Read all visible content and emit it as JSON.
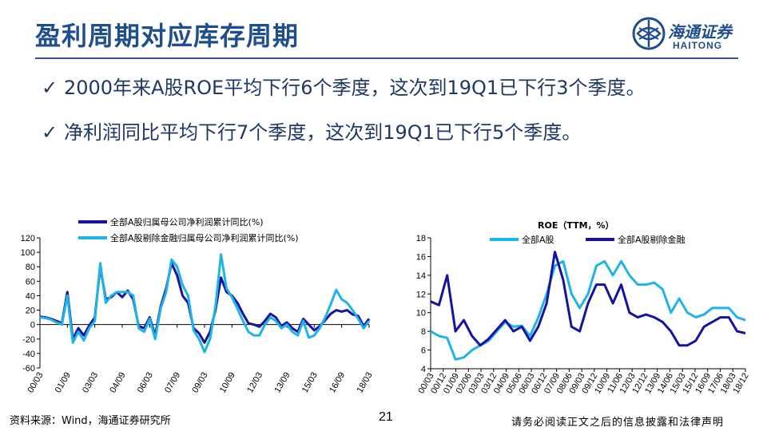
{
  "header": {
    "title": "盈利周期对应库存周期",
    "logo_cn": "海通证券",
    "logo_en": "HAITONG"
  },
  "bullets": [
    {
      "check": "✓",
      "text": "2000年来A股ROE平均下行6个季度，这次到19Q1已下行3个季度。"
    },
    {
      "check": "✓",
      "text": "净利润同比平均下行7个季度，这次到19Q1已下行5个季度。"
    }
  ],
  "colors": {
    "dark": "#1414a0",
    "light": "#1eb4e6",
    "title": "#1f4e8c"
  },
  "chart_data": [
    {
      "type": "line",
      "title": "",
      "xlabel": "",
      "ylabel": "",
      "ylim": [
        -60,
        120
      ],
      "yticks": [
        "120",
        "100",
        "80",
        "60",
        "40",
        "20",
        "0",
        "-20",
        "-40",
        "-60"
      ],
      "xticks": [
        "00/03",
        "01/09",
        "03/03",
        "04/09",
        "06/03",
        "07/09",
        "09/03",
        "10/09",
        "12/03",
        "13/09",
        "15/03",
        "16/09",
        "18/03"
      ],
      "legend_position": "top",
      "series": [
        {
          "name": "全部A股归属母公司净利润累计同比(%)",
          "color": "#1414a0",
          "values": [
            11,
            10,
            8,
            5,
            2,
            45,
            -20,
            -5,
            -15,
            -1,
            10,
            80,
            35,
            38,
            45,
            38,
            47,
            35,
            -2,
            -5,
            10,
            -15,
            25,
            50,
            85,
            68,
            40,
            30,
            -5,
            -12,
            -25,
            -10,
            20,
            65,
            45,
            40,
            30,
            15,
            2,
            0,
            -3,
            5,
            15,
            10,
            -2,
            3,
            -5,
            -10,
            8,
            0,
            -8,
            -2,
            6,
            15,
            20,
            18,
            20,
            14,
            12,
            -2,
            8
          ]
        },
        {
          "name": "全部A股剔除金融归属母公司净利润累计同比(%)",
          "color": "#1eb4e6",
          "values": [
            10,
            9,
            7,
            3,
            0,
            40,
            -25,
            -10,
            -22,
            -5,
            5,
            85,
            30,
            40,
            45,
            45,
            45,
            40,
            -5,
            -10,
            8,
            -20,
            22,
            45,
            90,
            80,
            55,
            40,
            -8,
            -20,
            -38,
            -20,
            25,
            97,
            50,
            38,
            22,
            5,
            -10,
            -15,
            -15,
            0,
            10,
            5,
            -5,
            0,
            -10,
            -15,
            5,
            -18,
            -15,
            -5,
            10,
            28,
            48,
            35,
            30,
            20,
            8,
            -5,
            5
          ]
        }
      ]
    },
    {
      "type": "line",
      "title": "ROE（TTM，%）",
      "xlabel": "",
      "ylabel": "",
      "ylim": [
        4,
        18
      ],
      "yticks": [
        "18",
        "16",
        "14",
        "12",
        "10",
        "8",
        "6",
        "4"
      ],
      "xticks": [
        "00/03",
        "00/12",
        "01/09",
        "02/06",
        "03/03",
        "03/12",
        "04/09",
        "05/06",
        "06/03",
        "06/12",
        "07/09",
        "08/06",
        "09/03",
        "09/12",
        "10/09",
        "11/06",
        "12/03",
        "12/12",
        "13/09",
        "14/06",
        "15/03",
        "15/12",
        "16/09",
        "17/06",
        "18/03",
        "18/12"
      ],
      "legend_position": "top",
      "series": [
        {
          "name": "全部A股",
          "color": "#1eb4e6",
          "values": [
            8.0,
            7.5,
            7.3,
            5.0,
            5.2,
            6.0,
            6.5,
            7.0,
            8.0,
            9.0,
            8.5,
            8.6,
            7.5,
            9.5,
            12.0,
            15.0,
            15.5,
            12.0,
            10.5,
            12.0,
            15.0,
            15.5,
            14.0,
            15.5,
            14.0,
            13.0,
            13.0,
            13.2,
            12.5,
            10.0,
            11.5,
            10.0,
            9.5,
            9.8,
            10.5,
            10.5,
            10.5,
            9.5,
            9.2
          ]
        },
        {
          "name": "全部A股剔除金融",
          "color": "#1414a0",
          "values": [
            11.2,
            10.8,
            14.0,
            8.0,
            9.2,
            7.5,
            6.5,
            7.2,
            8.2,
            9.2,
            8.0,
            8.5,
            7.0,
            8.5,
            11.0,
            16.5,
            13.5,
            8.5,
            8.0,
            11.0,
            13.0,
            13.0,
            11.0,
            13.0,
            10.0,
            9.5,
            9.8,
            9.5,
            9.0,
            8.0,
            6.5,
            6.5,
            7.0,
            8.5,
            9.0,
            9.5,
            9.5,
            8.0,
            7.8
          ]
        }
      ]
    }
  ],
  "footer": {
    "source": "资料来源：Wind，海通证券研究所",
    "page": "21",
    "disclaimer": "请务必阅读正文之后的信息披露和法律声明"
  }
}
